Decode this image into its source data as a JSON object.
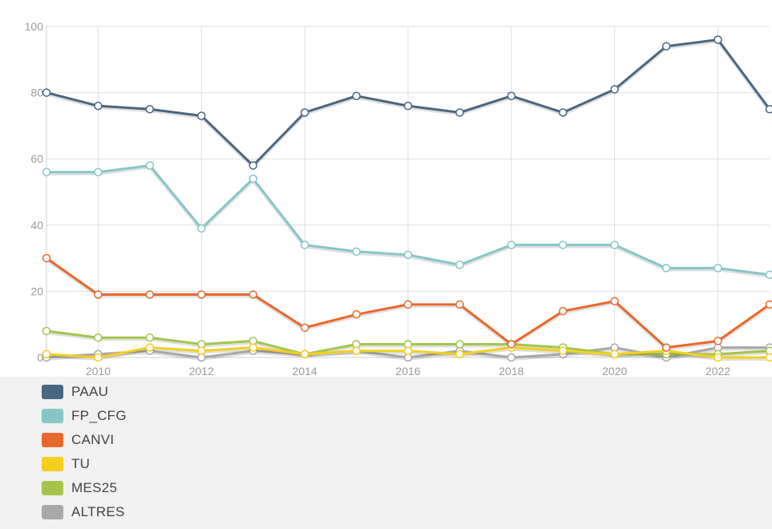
{
  "chart_data": {
    "type": "line",
    "title": "",
    "xlabel": "",
    "ylabel": "",
    "ylim": [
      0,
      100
    ],
    "xlim": [
      2009,
      2023
    ],
    "y_ticks": [
      "0",
      "20",
      "40",
      "60",
      "80",
      "100"
    ],
    "x_ticks": [
      "2010",
      "2012",
      "2014",
      "2016",
      "2018",
      "2020",
      "2022"
    ],
    "grid": true,
    "legend_position": "bottom-left",
    "x": [
      2009,
      2010,
      2011,
      2012,
      2013,
      2014,
      2015,
      2016,
      2017,
      2018,
      2019,
      2020,
      2021,
      2022,
      2023
    ],
    "series": [
      {
        "name": "PAAU",
        "color": "#4a6680",
        "values": [
          80,
          76,
          75,
          73,
          58,
          74,
          79,
          76,
          74,
          79,
          74,
          81,
          94,
          96,
          75
        ]
      },
      {
        "name": "FP_CFG",
        "color": "#86c6c6",
        "values": [
          56,
          56,
          58,
          39,
          54,
          34,
          32,
          31,
          28,
          34,
          34,
          34,
          27,
          27,
          25
        ]
      },
      {
        "name": "CANVI",
        "color": "#e8672c",
        "values": [
          30,
          19,
          19,
          19,
          19,
          9,
          13,
          16,
          16,
          4,
          14,
          17,
          3,
          5,
          16
        ]
      },
      {
        "name": "TU",
        "color": "#f4cf1e",
        "values": [
          1,
          0,
          3,
          2,
          3,
          1,
          2,
          2,
          1,
          3,
          2,
          1,
          2,
          0,
          0
        ]
      },
      {
        "name": "MES25",
        "color": "#a5c44c",
        "values": [
          8,
          6,
          6,
          4,
          5,
          1,
          4,
          4,
          4,
          4,
          3,
          1,
          1,
          1,
          2
        ]
      },
      {
        "name": "ALTRES",
        "color": "#a8a8a8",
        "values": [
          0,
          1,
          2,
          0,
          2,
          1,
          2,
          0,
          2,
          0,
          1,
          3,
          0,
          3,
          3
        ]
      }
    ]
  }
}
